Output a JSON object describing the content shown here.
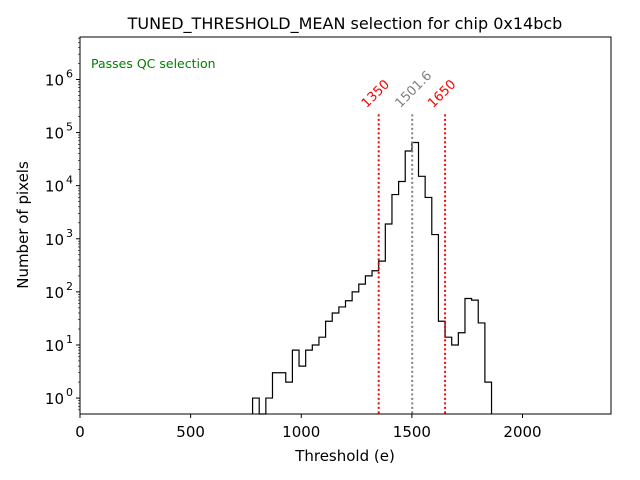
{
  "chart_data": {
    "type": "histogram",
    "title": "TUNED_THRESHOLD_MEAN selection for chip 0x14bcb",
    "xlabel": "Threshold (e)",
    "ylabel": "Number of pixels",
    "xlim": [
      0,
      2400
    ],
    "ylim_log10": [
      -0.3,
      6.8
    ],
    "x_ticks": [
      0,
      500,
      1000,
      1500,
      2000
    ],
    "x_tick_labels": [
      "0",
      "500",
      "1000",
      "1500",
      "2000"
    ],
    "y_ticks_log10": [
      0,
      1,
      2,
      3,
      4,
      5,
      6
    ],
    "y_tick_bases": [
      "10",
      "10",
      "10",
      "10",
      "10",
      "10",
      "10"
    ],
    "y_tick_exponents": [
      "0",
      "1",
      "2",
      "3",
      "4",
      "5",
      "6"
    ],
    "bin_width": 30,
    "bins": [
      {
        "x0": 780,
        "count": 1
      },
      {
        "x0": 810,
        "count": 0
      },
      {
        "x0": 840,
        "count": 1
      },
      {
        "x0": 870,
        "count": 3
      },
      {
        "x0": 900,
        "count": 3
      },
      {
        "x0": 930,
        "count": 2
      },
      {
        "x0": 960,
        "count": 8
      },
      {
        "x0": 990,
        "count": 4
      },
      {
        "x0": 1020,
        "count": 8
      },
      {
        "x0": 1050,
        "count": 10
      },
      {
        "x0": 1080,
        "count": 14
      },
      {
        "x0": 1110,
        "count": 28
      },
      {
        "x0": 1140,
        "count": 40
      },
      {
        "x0": 1170,
        "count": 52
      },
      {
        "x0": 1200,
        "count": 68
      },
      {
        "x0": 1230,
        "count": 100
      },
      {
        "x0": 1260,
        "count": 140
      },
      {
        "x0": 1290,
        "count": 200
      },
      {
        "x0": 1320,
        "count": 250
      },
      {
        "x0": 1350,
        "count": 380
      },
      {
        "x0": 1380,
        "count": 1900
      },
      {
        "x0": 1410,
        "count": 6800
      },
      {
        "x0": 1440,
        "count": 12000
      },
      {
        "x0": 1470,
        "count": 45000
      },
      {
        "x0": 1500,
        "count": 65000
      },
      {
        "x0": 1530,
        "count": 15000
      },
      {
        "x0": 1560,
        "count": 6000
      },
      {
        "x0": 1590,
        "count": 1200
      },
      {
        "x0": 1620,
        "count": 28
      },
      {
        "x0": 1650,
        "count": 14
      },
      {
        "x0": 1680,
        "count": 10
      },
      {
        "x0": 1710,
        "count": 17
      },
      {
        "x0": 1740,
        "count": 75
      },
      {
        "x0": 1770,
        "count": 70
      },
      {
        "x0": 1800,
        "count": 26
      },
      {
        "x0": 1830,
        "count": 2
      }
    ],
    "vlines": [
      {
        "x": 1350,
        "label": "1350",
        "color": "#ff0000"
      },
      {
        "x": 1501.6,
        "label": "1501.6",
        "color": "#808080"
      },
      {
        "x": 1650,
        "label": "1650",
        "color": "#ff0000"
      }
    ],
    "annotation": {
      "text": "Passes QC selection",
      "color": "#008000"
    },
    "line_color": "#000000"
  }
}
